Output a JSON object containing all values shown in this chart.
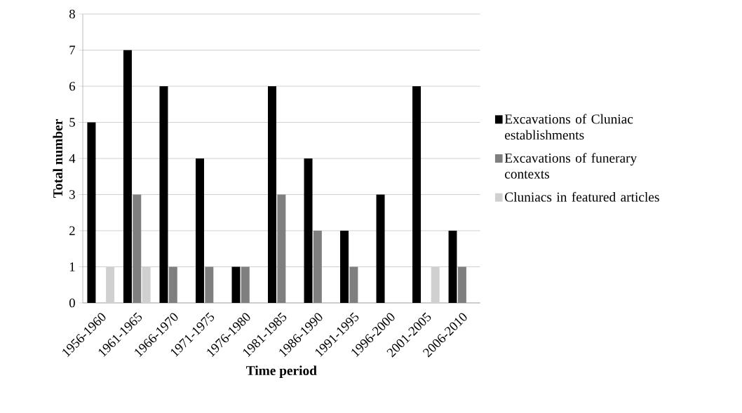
{
  "chart_data": {
    "type": "bar",
    "xlabel": "Time period",
    "ylabel": "Total number",
    "categories": [
      "1956-1960",
      "1961-1965",
      "1966-1970",
      "1971-1975",
      "1976-1980",
      "1981-1985",
      "1986-1990",
      "1991-1995",
      "1996-2000",
      "2001-2005",
      "2006-2010"
    ],
    "series": [
      {
        "name": "Excavations of Cluniac establishments",
        "color": "#000000",
        "values": [
          5,
          7,
          6,
          4,
          1,
          6,
          4,
          2,
          3,
          6,
          2
        ]
      },
      {
        "name": "Excavations of funerary contexts",
        "color": "#7f7f7f",
        "values": [
          0,
          3,
          1,
          1,
          1,
          3,
          2,
          1,
          0,
          0,
          1
        ]
      },
      {
        "name": "Cluniacs in featured articles",
        "color": "#d0d0d0",
        "values": [
          1,
          1,
          0,
          0,
          0,
          0,
          0,
          0,
          0,
          1,
          0
        ]
      }
    ],
    "ylim": [
      0,
      8
    ],
    "yticks": [
      0,
      1,
      2,
      3,
      4,
      5,
      6,
      7,
      8
    ],
    "grid": "y",
    "legend": "right"
  }
}
